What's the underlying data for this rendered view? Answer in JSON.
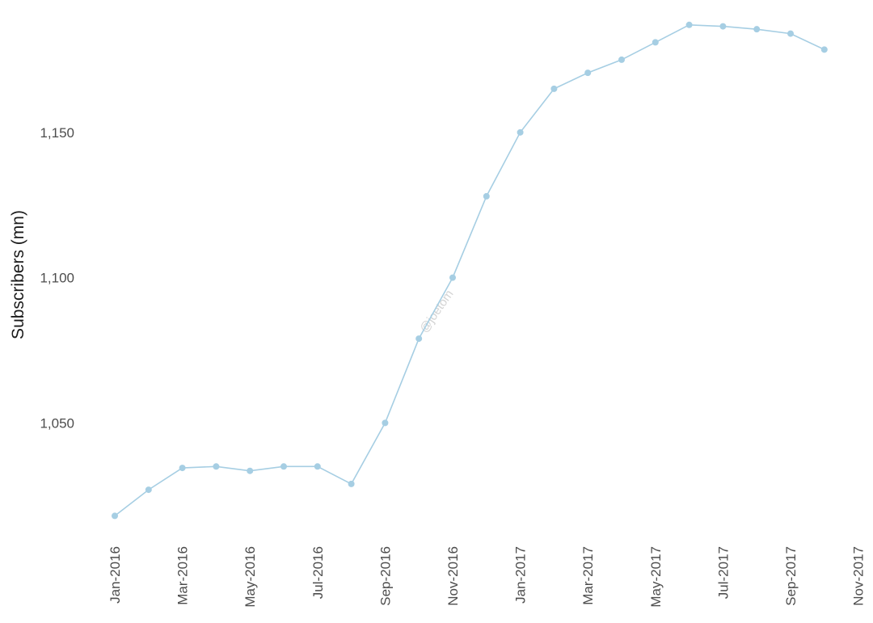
{
  "chart_data": {
    "type": "line",
    "title": "",
    "xlabel": "",
    "ylabel": "Subscribers (mn)",
    "ylim": [
      1012,
      1190
    ],
    "grid": false,
    "line_color": "#a6cee3",
    "x_tick_labels": [
      "Jan-2016",
      "Mar-2016",
      "May-2016",
      "Jul-2016",
      "Sep-2016",
      "Nov-2016",
      "Jan-2017",
      "Mar-2017",
      "May-2017",
      "Jul-2017",
      "Sep-2017",
      "Nov-2017"
    ],
    "y_tick_labels": [
      "1,050",
      "1,100",
      "1,150"
    ],
    "y_tick_values": [
      1050,
      1100,
      1150
    ],
    "x": [
      "Jan-2016",
      "Feb-2016",
      "Mar-2016",
      "Apr-2016",
      "May-2016",
      "Jun-2016",
      "Jul-2016",
      "Aug-2016",
      "Sep-2016",
      "Oct-2016",
      "Nov-2016",
      "Dec-2016",
      "Jan-2017",
      "Feb-2017",
      "Mar-2017",
      "Apr-2017",
      "May-2017",
      "Jun-2017",
      "Jul-2017",
      "Aug-2017",
      "Sep-2017",
      "Oct-2017"
    ],
    "series": [
      {
        "values": [
          1018,
          1027,
          1034.5,
          1035,
          1033.5,
          1035,
          1035,
          1029,
          1050,
          1079,
          1100,
          1128,
          1150,
          1165,
          1170.5,
          1175,
          1181,
          1187,
          1186.5,
          1185.5,
          1184,
          1178.5
        ]
      }
    ],
    "watermark": "@joetom"
  }
}
